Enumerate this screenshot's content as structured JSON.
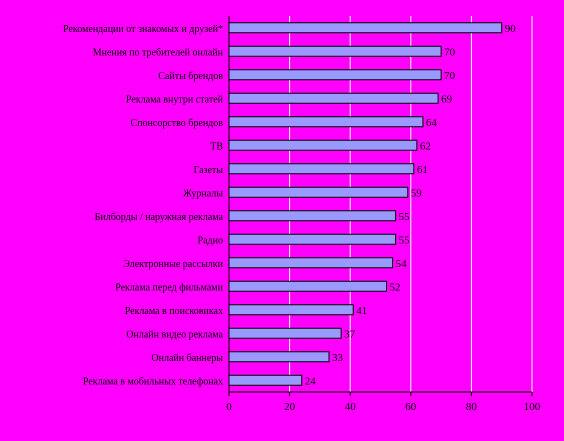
{
  "chart_data": {
    "type": "bar",
    "orientation": "horizontal",
    "categories": [
      "Рекомендации от знакомых и друзей*",
      "Мнения по требителей онлайн",
      "Сайты брендов",
      "Реклама внутри статей",
      "Спонсорство брендов",
      "ТВ",
      "Газеты",
      "Журналы",
      "Билборды / наружная реклама",
      "Радио",
      "Электронные рассылки",
      "Реклама перед фильмами",
      "Реклама в поисковиках",
      "Онлайн видео реклама",
      "Онлайн баннеры",
      "Реклама в мобильных телефонах"
    ],
    "values": [
      90,
      70,
      70,
      69,
      64,
      62,
      61,
      59,
      55,
      55,
      54,
      52,
      41,
      37,
      33,
      24
    ],
    "xlim": [
      0,
      100
    ],
    "xticks": [
      "0",
      "20",
      "40",
      "60",
      "80",
      "100"
    ],
    "grid": true,
    "colors": {
      "background": "#ff00ff",
      "bar_fill": "#9999ff",
      "bar_stroke": "#000000",
      "grid": "#ffffff"
    }
  }
}
